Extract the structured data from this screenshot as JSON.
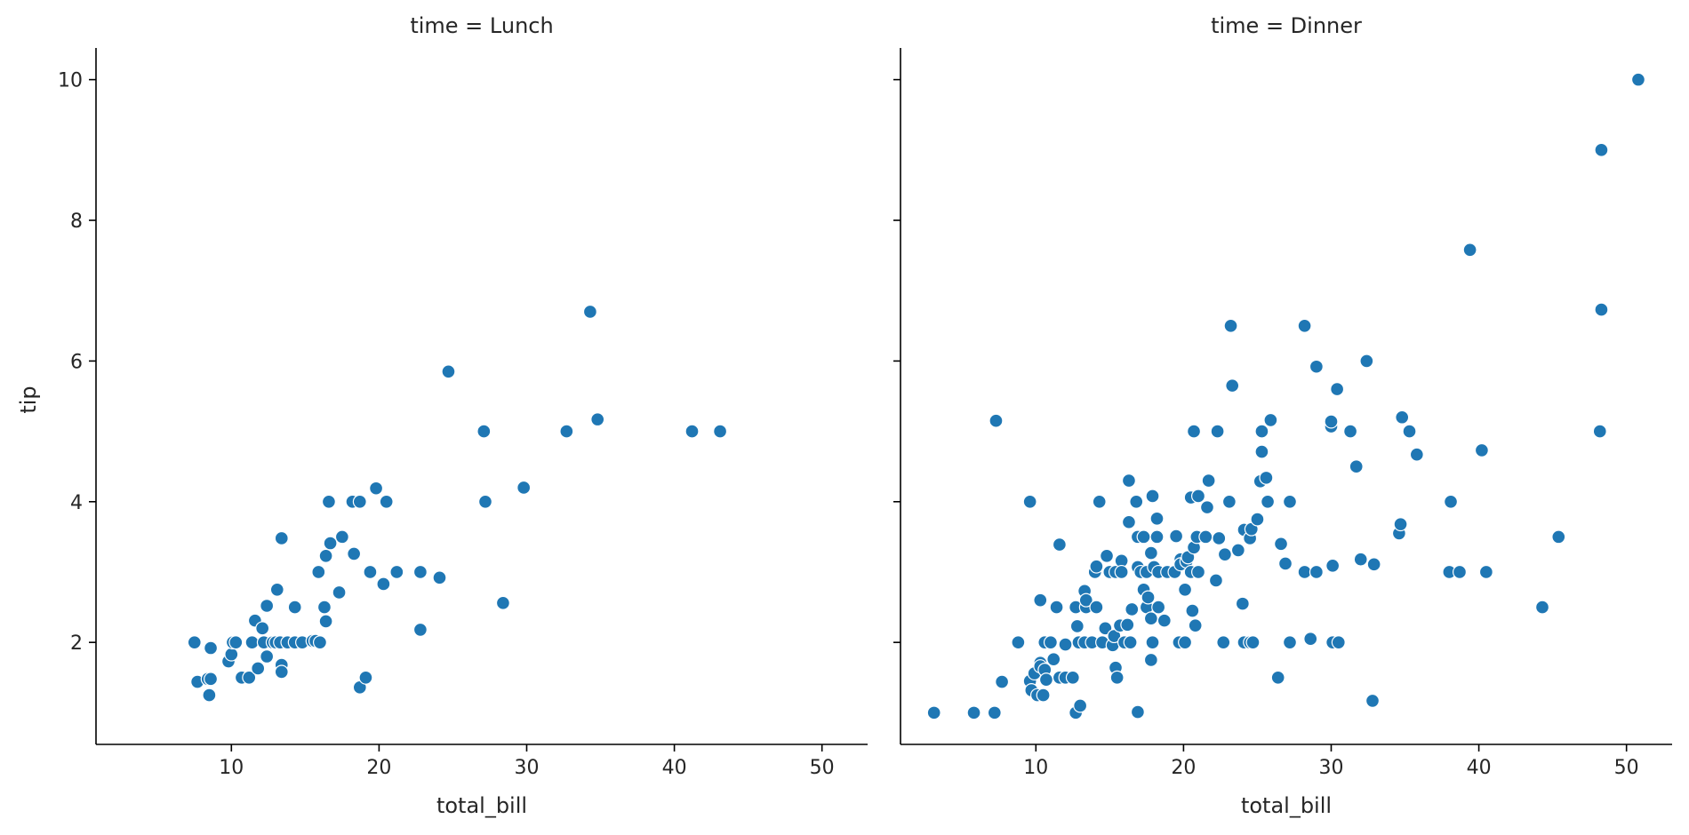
{
  "chart_data": {
    "type": "scatter",
    "xlabel": "total_bill",
    "ylabel": "tip",
    "xlim": [
      0.83,
      53.09
    ],
    "ylim": [
      0.55,
      10.45
    ],
    "xticks": [
      10,
      20,
      30,
      40,
      50
    ],
    "yticks": [
      2,
      4,
      6,
      8,
      10
    ],
    "grid": false,
    "legend": "none",
    "point_color": "#1f77b4",
    "facets": [
      {
        "title": "time = Lunch",
        "points": [
          [
            7.5,
            2.0
          ],
          [
            7.7,
            1.44
          ],
          [
            8.4,
            1.48
          ],
          [
            8.5,
            1.25
          ],
          [
            8.6,
            1.92
          ],
          [
            8.6,
            1.48
          ],
          [
            9.8,
            1.73
          ],
          [
            10.0,
            1.83
          ],
          [
            10.1,
            2.0
          ],
          [
            10.3,
            2.0
          ],
          [
            10.7,
            1.5
          ],
          [
            11.2,
            1.5
          ],
          [
            11.4,
            2.0
          ],
          [
            11.6,
            2.31
          ],
          [
            11.8,
            1.63
          ],
          [
            12.1,
            2.2
          ],
          [
            12.2,
            2.0
          ],
          [
            12.4,
            1.8
          ],
          [
            12.4,
            2.52
          ],
          [
            12.8,
            2.0
          ],
          [
            13.0,
            2.0
          ],
          [
            13.1,
            2.75
          ],
          [
            13.3,
            2.0
          ],
          [
            13.4,
            3.48
          ],
          [
            13.4,
            1.68
          ],
          [
            13.4,
            1.58
          ],
          [
            13.8,
            2.0
          ],
          [
            14.3,
            2.5
          ],
          [
            14.3,
            2.0
          ],
          [
            14.8,
            2.0
          ],
          [
            15.5,
            2.02
          ],
          [
            15.7,
            2.02
          ],
          [
            15.9,
            3.0
          ],
          [
            16.0,
            2.0
          ],
          [
            16.3,
            2.5
          ],
          [
            16.4,
            2.3
          ],
          [
            16.4,
            3.23
          ],
          [
            16.6,
            4.0
          ],
          [
            16.7,
            3.41
          ],
          [
            17.3,
            2.71
          ],
          [
            17.5,
            3.5
          ],
          [
            18.2,
            4.0
          ],
          [
            18.3,
            3.26
          ],
          [
            18.7,
            4.0
          ],
          [
            18.7,
            1.36
          ],
          [
            19.1,
            1.5
          ],
          [
            19.4,
            3.0
          ],
          [
            19.8,
            4.19
          ],
          [
            20.3,
            2.83
          ],
          [
            20.5,
            4.0
          ],
          [
            21.2,
            3.0
          ],
          [
            22.8,
            3.0
          ],
          [
            22.8,
            2.18
          ],
          [
            24.1,
            2.92
          ],
          [
            24.7,
            5.85
          ],
          [
            27.1,
            5.0
          ],
          [
            27.2,
            4.0
          ],
          [
            28.4,
            2.56
          ],
          [
            29.8,
            4.2
          ],
          [
            32.7,
            5.0
          ],
          [
            34.3,
            6.7
          ],
          [
            34.8,
            5.17
          ],
          [
            41.2,
            5.0
          ],
          [
            43.1,
            5.0
          ]
        ]
      },
      {
        "title": "time = Dinner",
        "points": [
          [
            3.1,
            1.0
          ],
          [
            5.8,
            1.0
          ],
          [
            7.2,
            1.0
          ],
          [
            7.3,
            5.15
          ],
          [
            7.7,
            1.44
          ],
          [
            8.8,
            2.0
          ],
          [
            9.6,
            4.0
          ],
          [
            9.6,
            1.45
          ],
          [
            9.7,
            1.32
          ],
          [
            9.9,
            1.56
          ],
          [
            10.1,
            1.25
          ],
          [
            10.3,
            1.71
          ],
          [
            10.3,
            2.6
          ],
          [
            10.3,
            1.66
          ],
          [
            10.5,
            1.25
          ],
          [
            10.6,
            2.0
          ],
          [
            10.6,
            1.61
          ],
          [
            10.7,
            1.47
          ],
          [
            11.0,
            2.0
          ],
          [
            11.2,
            1.76
          ],
          [
            11.4,
            2.5
          ],
          [
            11.6,
            1.5
          ],
          [
            11.6,
            3.39
          ],
          [
            12.0,
            1.5
          ],
          [
            12.0,
            1.97
          ],
          [
            12.5,
            1.5
          ],
          [
            12.7,
            2.5
          ],
          [
            12.7,
            1.0
          ],
          [
            12.8,
            2.23
          ],
          [
            12.9,
            2.0
          ],
          [
            13.0,
            1.1
          ],
          [
            13.3,
            2.0
          ],
          [
            13.3,
            2.73
          ],
          [
            13.4,
            2.5
          ],
          [
            13.4,
            2.6
          ],
          [
            13.8,
            2.0
          ],
          [
            14.0,
            3.0
          ],
          [
            14.1,
            2.5
          ],
          [
            14.1,
            3.08
          ],
          [
            14.3,
            4.0
          ],
          [
            14.5,
            2.0
          ],
          [
            14.7,
            2.2
          ],
          [
            14.8,
            3.23
          ],
          [
            15.0,
            3.0
          ],
          [
            15.2,
            1.96
          ],
          [
            15.3,
            2.09
          ],
          [
            15.4,
            1.64
          ],
          [
            15.4,
            3.0
          ],
          [
            15.5,
            1.5
          ],
          [
            15.7,
            2.24
          ],
          [
            15.8,
            3.16
          ],
          [
            15.8,
            3.0
          ],
          [
            16.0,
            2.0
          ],
          [
            16.2,
            2.25
          ],
          [
            16.3,
            3.71
          ],
          [
            16.3,
            4.3
          ],
          [
            16.4,
            2.0
          ],
          [
            16.5,
            2.47
          ],
          [
            16.8,
            4.0
          ],
          [
            16.9,
            3.07
          ],
          [
            16.9,
            3.5
          ],
          [
            16.9,
            1.01
          ],
          [
            17.1,
            3.0
          ],
          [
            17.3,
            2.75
          ],
          [
            17.3,
            3.5
          ],
          [
            17.5,
            3.0
          ],
          [
            17.5,
            2.5
          ],
          [
            17.6,
            2.64
          ],
          [
            17.8,
            3.27
          ],
          [
            17.8,
            2.34
          ],
          [
            17.8,
            1.75
          ],
          [
            17.9,
            4.08
          ],
          [
            17.9,
            2.0
          ],
          [
            18.0,
            3.07
          ],
          [
            18.2,
            3.76
          ],
          [
            18.2,
            3.5
          ],
          [
            18.3,
            2.5
          ],
          [
            18.3,
            3.0
          ],
          [
            18.7,
            2.31
          ],
          [
            18.9,
            3.0
          ],
          [
            19.4,
            3.0
          ],
          [
            19.5,
            3.51
          ],
          [
            19.7,
            2.0
          ],
          [
            19.8,
            3.18
          ],
          [
            19.8,
            3.11
          ],
          [
            20.1,
            2.0
          ],
          [
            20.1,
            2.75
          ],
          [
            20.2,
            3.15
          ],
          [
            20.3,
            3.21
          ],
          [
            20.5,
            3.0
          ],
          [
            20.5,
            4.06
          ],
          [
            20.6,
            2.45
          ],
          [
            20.7,
            3.35
          ],
          [
            20.7,
            5.0
          ],
          [
            20.8,
            2.24
          ],
          [
            20.9,
            3.5
          ],
          [
            21.0,
            4.08
          ],
          [
            21.0,
            3.0
          ],
          [
            21.5,
            3.5
          ],
          [
            21.6,
            3.92
          ],
          [
            21.7,
            4.3
          ],
          [
            22.2,
            2.88
          ],
          [
            22.3,
            5.0
          ],
          [
            22.4,
            3.48
          ],
          [
            22.7,
            2.0
          ],
          [
            22.8,
            3.25
          ],
          [
            23.1,
            4.0
          ],
          [
            23.2,
            6.5
          ],
          [
            23.3,
            5.65
          ],
          [
            23.7,
            3.31
          ],
          [
            24.0,
            2.55
          ],
          [
            24.1,
            3.6
          ],
          [
            24.1,
            2.0
          ],
          [
            24.5,
            3.48
          ],
          [
            24.5,
            2.0
          ],
          [
            24.6,
            3.61
          ],
          [
            24.7,
            2.0
          ],
          [
            25.0,
            3.75
          ],
          [
            25.2,
            4.29
          ],
          [
            25.3,
            4.71
          ],
          [
            25.3,
            5.0
          ],
          [
            25.6,
            4.34
          ],
          [
            25.7,
            4.0
          ],
          [
            25.9,
            5.16
          ],
          [
            26.4,
            1.5
          ],
          [
            26.6,
            3.4
          ],
          [
            26.9,
            3.12
          ],
          [
            27.2,
            4.0
          ],
          [
            27.2,
            2.0
          ],
          [
            28.2,
            6.5
          ],
          [
            28.2,
            3.0
          ],
          [
            28.6,
            2.05
          ],
          [
            29.0,
            5.92
          ],
          [
            29.0,
            3.0
          ],
          [
            30.0,
            5.07
          ],
          [
            30.0,
            5.14
          ],
          [
            30.1,
            2.0
          ],
          [
            30.1,
            3.09
          ],
          [
            30.4,
            5.6
          ],
          [
            30.5,
            2.0
          ],
          [
            31.3,
            5.0
          ],
          [
            31.7,
            4.5
          ],
          [
            32.0,
            3.18
          ],
          [
            32.4,
            6.0
          ],
          [
            32.8,
            1.17
          ],
          [
            32.9,
            3.11
          ],
          [
            34.6,
            3.55
          ],
          [
            34.7,
            3.68
          ],
          [
            34.8,
            5.2
          ],
          [
            35.3,
            5.0
          ],
          [
            35.8,
            4.67
          ],
          [
            38.0,
            3.0
          ],
          [
            38.1,
            4.0
          ],
          [
            38.7,
            3.0
          ],
          [
            39.4,
            7.58
          ],
          [
            40.2,
            4.73
          ],
          [
            40.5,
            3.0
          ],
          [
            44.3,
            2.5
          ],
          [
            45.4,
            3.5
          ],
          [
            48.2,
            5.0
          ],
          [
            48.3,
            6.73
          ],
          [
            48.3,
            9.0
          ],
          [
            50.8,
            10.0
          ]
        ]
      }
    ]
  }
}
